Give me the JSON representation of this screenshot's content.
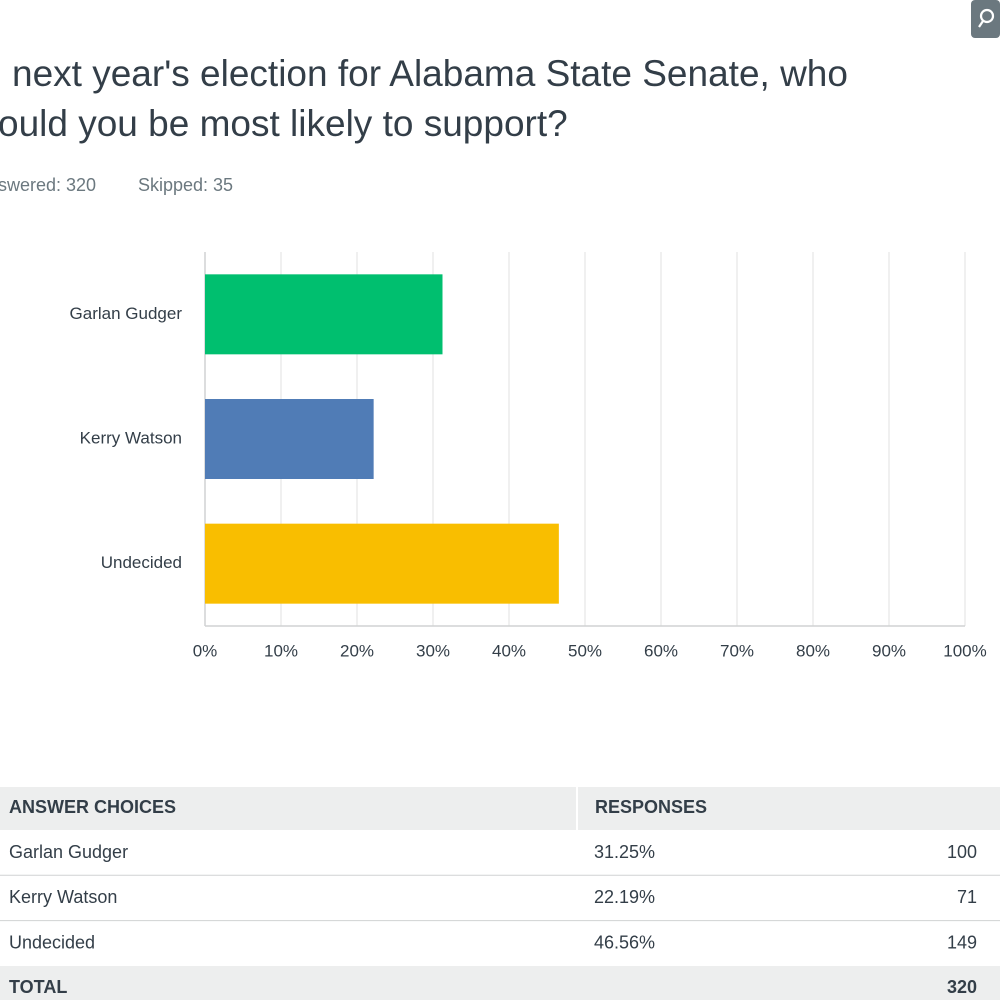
{
  "question": {
    "title_lines": [
      "next year's election for Alabama State Senate, who",
      "ould you be most likely to support?"
    ],
    "answered": "swered: 320",
    "skipped": "Skipped: 35"
  },
  "chart_data": {
    "type": "bar",
    "orientation": "horizontal",
    "categories": [
      "Garlan Gudger",
      "Kerry Watson",
      "Undecided"
    ],
    "values": [
      31.25,
      22.19,
      46.56
    ],
    "colors": [
      "#00bf6f",
      "#507cb6",
      "#f9be00"
    ],
    "xlim": [
      0,
      100
    ],
    "xticks": [
      {
        "value": 0,
        "label": "0%"
      },
      {
        "value": 10,
        "label": "10%"
      },
      {
        "value": 20,
        "label": "20%"
      },
      {
        "value": 30,
        "label": "30%"
      },
      {
        "value": 40,
        "label": "40%"
      },
      {
        "value": 50,
        "label": "50%"
      },
      {
        "value": 60,
        "label": "60%"
      },
      {
        "value": 70,
        "label": "70%"
      },
      {
        "value": 80,
        "label": "80%"
      },
      {
        "value": 90,
        "label": "90%"
      },
      {
        "value": 100,
        "label": "100%"
      }
    ],
    "grid": true
  },
  "table": {
    "header": [
      "ANSWER CHOICES",
      "RESPONSES"
    ],
    "rows": [
      [
        "Garlan Gudger",
        "31.25%",
        "100"
      ],
      [
        "Kerry Watson",
        "22.19%",
        "71"
      ],
      [
        "Undecided",
        "46.56%",
        "149"
      ]
    ],
    "total": [
      "TOTAL",
      "320"
    ]
  }
}
